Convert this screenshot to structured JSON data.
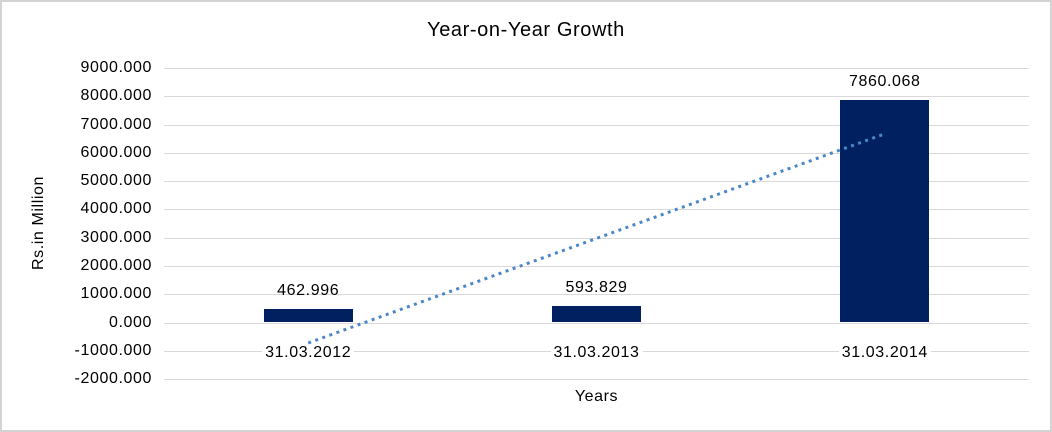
{
  "chart_data": {
    "type": "bar",
    "title": "Year-on-Year Growth",
    "xlabel": "Years",
    "ylabel": "Rs.in Million",
    "categories": [
      "31.03.2012",
      "31.03.2013",
      "31.03.2014"
    ],
    "values": [
      462.996,
      593.829,
      7860.068
    ],
    "data_labels": [
      "462.996",
      "593.829",
      "7860.068"
    ],
    "ylim": [
      -2000,
      9000
    ],
    "ytick_step": 1000,
    "ytick_labels": [
      "9000.000",
      "8000.000",
      "7000.000",
      "6000.000",
      "5000.000",
      "4000.000",
      "3000.000",
      "2000.000",
      "1000.000",
      "0.000",
      "-1000.000",
      "-2000.000"
    ],
    "grid": true,
    "legend": "none",
    "trendline": {
      "type": "linear",
      "style": "dotted",
      "start_value": -726,
      "end_value": 6671
    },
    "colors": {
      "bar": "#002060",
      "trendline": "#4a86c8",
      "gridline": "#d9d9d9",
      "text": "#000000",
      "border": "#d3d3d3",
      "background": "#ffffff"
    }
  }
}
